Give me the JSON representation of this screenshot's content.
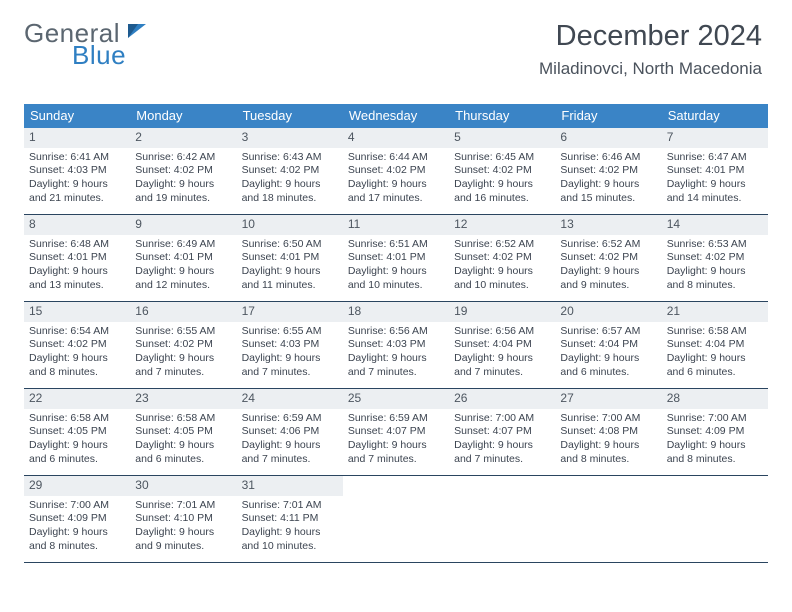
{
  "logo": {
    "part1": "General",
    "part2": "Blue"
  },
  "header": {
    "month_title": "December 2024",
    "location": "Miladinovci, North Macedonia"
  },
  "colors": {
    "header_bg": "#3a84c6",
    "header_text": "#ffffff",
    "daynum_bg": "#eceff2",
    "daynum_text": "#4d5660",
    "body_text": "#3c4450",
    "rule": "#2a4560",
    "logo_gray": "#5b6670",
    "logo_blue": "#2f7fc2"
  },
  "day_headers": [
    "Sunday",
    "Monday",
    "Tuesday",
    "Wednesday",
    "Thursday",
    "Friday",
    "Saturday"
  ],
  "weeks": [
    [
      {
        "n": "1",
        "sunrise": "Sunrise: 6:41 AM",
        "sunset": "Sunset: 4:03 PM",
        "daylight": "Daylight: 9 hours and 21 minutes."
      },
      {
        "n": "2",
        "sunrise": "Sunrise: 6:42 AM",
        "sunset": "Sunset: 4:02 PM",
        "daylight": "Daylight: 9 hours and 19 minutes."
      },
      {
        "n": "3",
        "sunrise": "Sunrise: 6:43 AM",
        "sunset": "Sunset: 4:02 PM",
        "daylight": "Daylight: 9 hours and 18 minutes."
      },
      {
        "n": "4",
        "sunrise": "Sunrise: 6:44 AM",
        "sunset": "Sunset: 4:02 PM",
        "daylight": "Daylight: 9 hours and 17 minutes."
      },
      {
        "n": "5",
        "sunrise": "Sunrise: 6:45 AM",
        "sunset": "Sunset: 4:02 PM",
        "daylight": "Daylight: 9 hours and 16 minutes."
      },
      {
        "n": "6",
        "sunrise": "Sunrise: 6:46 AM",
        "sunset": "Sunset: 4:02 PM",
        "daylight": "Daylight: 9 hours and 15 minutes."
      },
      {
        "n": "7",
        "sunrise": "Sunrise: 6:47 AM",
        "sunset": "Sunset: 4:01 PM",
        "daylight": "Daylight: 9 hours and 14 minutes."
      }
    ],
    [
      {
        "n": "8",
        "sunrise": "Sunrise: 6:48 AM",
        "sunset": "Sunset: 4:01 PM",
        "daylight": "Daylight: 9 hours and 13 minutes."
      },
      {
        "n": "9",
        "sunrise": "Sunrise: 6:49 AM",
        "sunset": "Sunset: 4:01 PM",
        "daylight": "Daylight: 9 hours and 12 minutes."
      },
      {
        "n": "10",
        "sunrise": "Sunrise: 6:50 AM",
        "sunset": "Sunset: 4:01 PM",
        "daylight": "Daylight: 9 hours and 11 minutes."
      },
      {
        "n": "11",
        "sunrise": "Sunrise: 6:51 AM",
        "sunset": "Sunset: 4:01 PM",
        "daylight": "Daylight: 9 hours and 10 minutes."
      },
      {
        "n": "12",
        "sunrise": "Sunrise: 6:52 AM",
        "sunset": "Sunset: 4:02 PM",
        "daylight": "Daylight: 9 hours and 10 minutes."
      },
      {
        "n": "13",
        "sunrise": "Sunrise: 6:52 AM",
        "sunset": "Sunset: 4:02 PM",
        "daylight": "Daylight: 9 hours and 9 minutes."
      },
      {
        "n": "14",
        "sunrise": "Sunrise: 6:53 AM",
        "sunset": "Sunset: 4:02 PM",
        "daylight": "Daylight: 9 hours and 8 minutes."
      }
    ],
    [
      {
        "n": "15",
        "sunrise": "Sunrise: 6:54 AM",
        "sunset": "Sunset: 4:02 PM",
        "daylight": "Daylight: 9 hours and 8 minutes."
      },
      {
        "n": "16",
        "sunrise": "Sunrise: 6:55 AM",
        "sunset": "Sunset: 4:02 PM",
        "daylight": "Daylight: 9 hours and 7 minutes."
      },
      {
        "n": "17",
        "sunrise": "Sunrise: 6:55 AM",
        "sunset": "Sunset: 4:03 PM",
        "daylight": "Daylight: 9 hours and 7 minutes."
      },
      {
        "n": "18",
        "sunrise": "Sunrise: 6:56 AM",
        "sunset": "Sunset: 4:03 PM",
        "daylight": "Daylight: 9 hours and 7 minutes."
      },
      {
        "n": "19",
        "sunrise": "Sunrise: 6:56 AM",
        "sunset": "Sunset: 4:04 PM",
        "daylight": "Daylight: 9 hours and 7 minutes."
      },
      {
        "n": "20",
        "sunrise": "Sunrise: 6:57 AM",
        "sunset": "Sunset: 4:04 PM",
        "daylight": "Daylight: 9 hours and 6 minutes."
      },
      {
        "n": "21",
        "sunrise": "Sunrise: 6:58 AM",
        "sunset": "Sunset: 4:04 PM",
        "daylight": "Daylight: 9 hours and 6 minutes."
      }
    ],
    [
      {
        "n": "22",
        "sunrise": "Sunrise: 6:58 AM",
        "sunset": "Sunset: 4:05 PM",
        "daylight": "Daylight: 9 hours and 6 minutes."
      },
      {
        "n": "23",
        "sunrise": "Sunrise: 6:58 AM",
        "sunset": "Sunset: 4:05 PM",
        "daylight": "Daylight: 9 hours and 6 minutes."
      },
      {
        "n": "24",
        "sunrise": "Sunrise: 6:59 AM",
        "sunset": "Sunset: 4:06 PM",
        "daylight": "Daylight: 9 hours and 7 minutes."
      },
      {
        "n": "25",
        "sunrise": "Sunrise: 6:59 AM",
        "sunset": "Sunset: 4:07 PM",
        "daylight": "Daylight: 9 hours and 7 minutes."
      },
      {
        "n": "26",
        "sunrise": "Sunrise: 7:00 AM",
        "sunset": "Sunset: 4:07 PM",
        "daylight": "Daylight: 9 hours and 7 minutes."
      },
      {
        "n": "27",
        "sunrise": "Sunrise: 7:00 AM",
        "sunset": "Sunset: 4:08 PM",
        "daylight": "Daylight: 9 hours and 8 minutes."
      },
      {
        "n": "28",
        "sunrise": "Sunrise: 7:00 AM",
        "sunset": "Sunset: 4:09 PM",
        "daylight": "Daylight: 9 hours and 8 minutes."
      }
    ],
    [
      {
        "n": "29",
        "sunrise": "Sunrise: 7:00 AM",
        "sunset": "Sunset: 4:09 PM",
        "daylight": "Daylight: 9 hours and 8 minutes."
      },
      {
        "n": "30",
        "sunrise": "Sunrise: 7:01 AM",
        "sunset": "Sunset: 4:10 PM",
        "daylight": "Daylight: 9 hours and 9 minutes."
      },
      {
        "n": "31",
        "sunrise": "Sunrise: 7:01 AM",
        "sunset": "Sunset: 4:11 PM",
        "daylight": "Daylight: 9 hours and 10 minutes."
      },
      null,
      null,
      null,
      null
    ]
  ]
}
